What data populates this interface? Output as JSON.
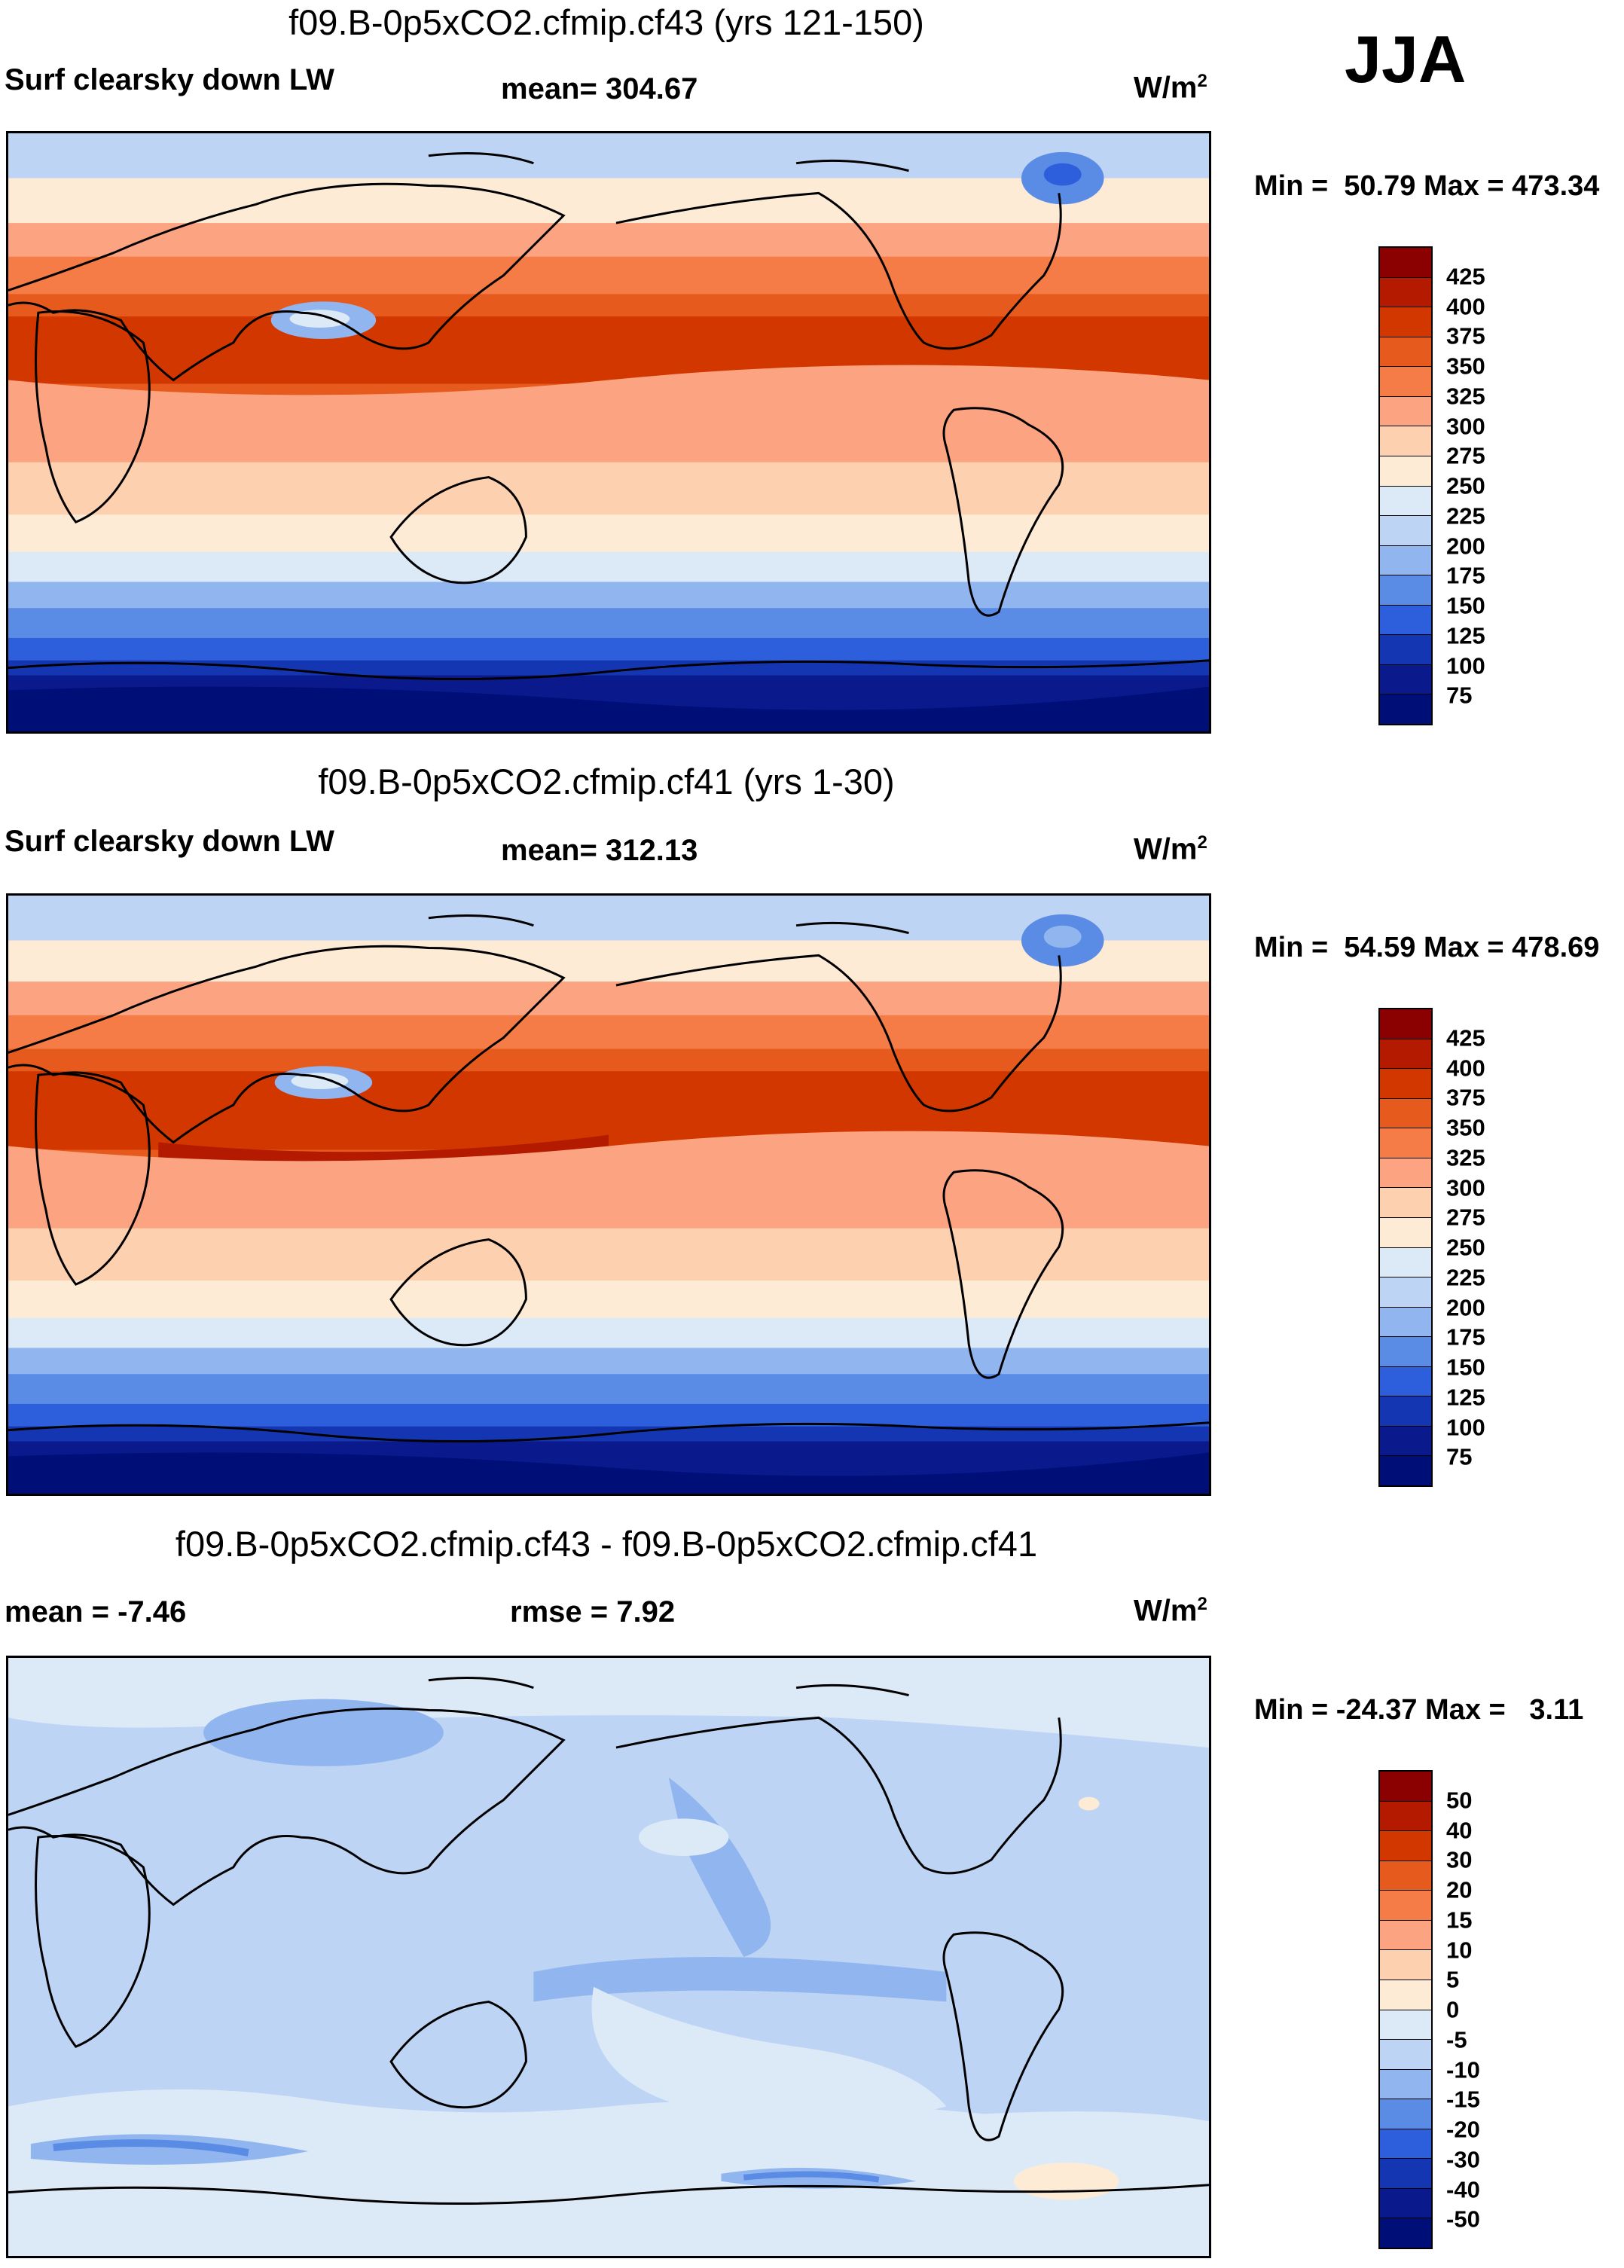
{
  "season": "JJA",
  "panels": [
    {
      "title": "f09.B-0p5xCO2.cfmip.cf43 (yrs 121-150)",
      "left_label": "Surf clearsky down LW",
      "center_label": "mean= 304.67",
      "right_label": "W/m",
      "unit_sup": "2",
      "minmax": "Min =  50.79 Max = 473.34",
      "colorbar_labels": [
        "425",
        "400",
        "375",
        "350",
        "325",
        "300",
        "275",
        "250",
        "225",
        "200",
        "175",
        "150",
        "125",
        "100",
        "75"
      ],
      "colors": [
        "#8b0000",
        "#b31a00",
        "#d23700",
        "#e65a1e",
        "#f57c46",
        "#fca481",
        "#fdd0b0",
        "#fdebd6",
        "#dceaf8",
        "#bdd4f4",
        "#91b6ef",
        "#5a8ce6",
        "#2d5fdc",
        "#1536b3",
        "#0a1a8c",
        "#000f78"
      ]
    },
    {
      "title": "f09.B-0p5xCO2.cfmip.cf41 (yrs 1-30)",
      "left_label": "Surf clearsky down LW",
      "center_label": "mean= 312.13",
      "right_label": "W/m",
      "unit_sup": "2",
      "minmax": "Min =  54.59 Max = 478.69",
      "colorbar_labels": [
        "425",
        "400",
        "375",
        "350",
        "325",
        "300",
        "275",
        "250",
        "225",
        "200",
        "175",
        "150",
        "125",
        "100",
        "75"
      ],
      "colors": [
        "#8b0000",
        "#b31a00",
        "#d23700",
        "#e65a1e",
        "#f57c46",
        "#fca481",
        "#fdd0b0",
        "#fdebd6",
        "#dceaf8",
        "#bdd4f4",
        "#91b6ef",
        "#5a8ce6",
        "#2d5fdc",
        "#1536b3",
        "#0a1a8c",
        "#000f78"
      ]
    },
    {
      "title": "f09.B-0p5xCO2.cfmip.cf43 - f09.B-0p5xCO2.cfmip.cf41",
      "left_label": "mean =  -7.46",
      "center_label": "rmse =    7.92",
      "right_label": "W/m",
      "unit_sup": "2",
      "minmax": "Min = -24.37 Max =   3.11",
      "colorbar_labels": [
        "50",
        "40",
        "30",
        "20",
        "15",
        "10",
        "5",
        "0",
        "-5",
        "-10",
        "-15",
        "-20",
        "-30",
        "-40",
        "-50"
      ],
      "colors": [
        "#8b0000",
        "#b31a00",
        "#d23700",
        "#e65a1e",
        "#f57c46",
        "#fca481",
        "#fdd0b0",
        "#fdebd6",
        "#dceaf8",
        "#bdd4f4",
        "#91b6ef",
        "#5a8ce6",
        "#2d5fdc",
        "#1536b3",
        "#0a1a8c",
        "#000f78"
      ]
    }
  ]
}
